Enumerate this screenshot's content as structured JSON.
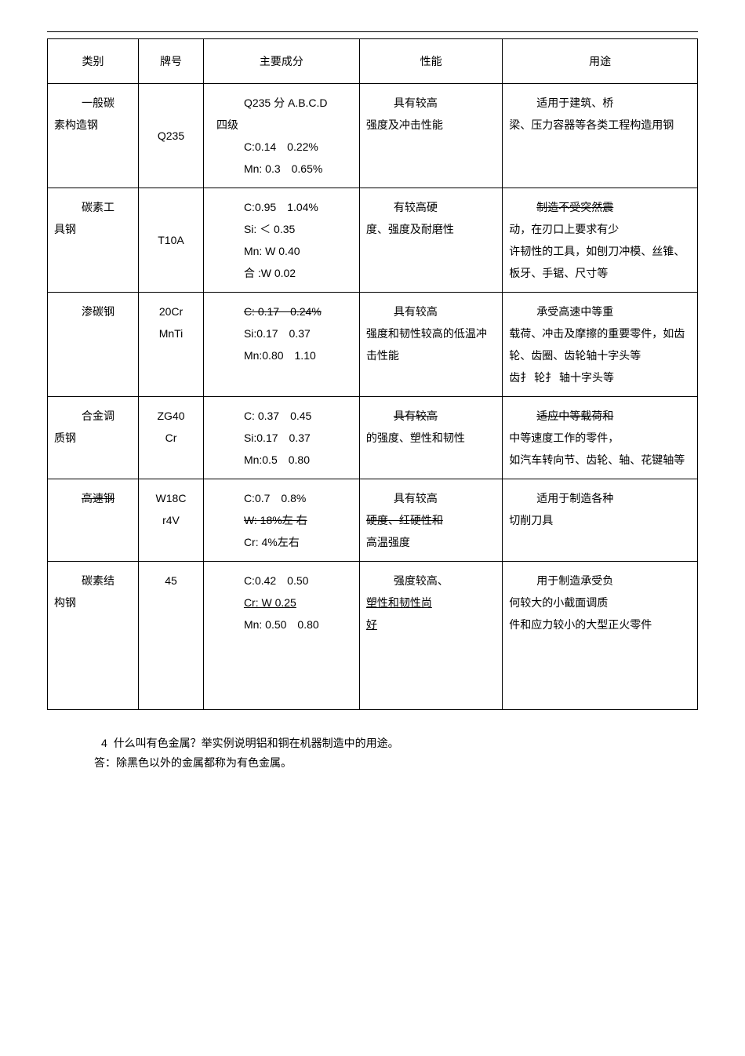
{
  "header": {
    "cat": "类别",
    "grade": "牌号",
    "comp": "主要成分",
    "prop": "性能",
    "use": "用途"
  },
  "rows": [
    {
      "cat_l1": "一般碳",
      "cat_l2": "素构造钢",
      "grade": "Q235",
      "comp_l1": "Q235 分 A.B.C.D",
      "comp_l2": "四级",
      "comp_l3": "C:0.14　0.22%",
      "comp_l4": "Mn: 0.3　0.65%",
      "prop_l1": "具有较高",
      "prop_l2": "强度及冲击性能",
      "use_l1": "适用于建筑、桥",
      "use_l2": "梁、压力容器等各类工程构造用钢"
    },
    {
      "cat_l1": "碳素工",
      "cat_l2": "具钢",
      "grade": "T10A",
      "comp_l1": "C:0.95　1.04%",
      "comp_l2": "Si: ＜ 0.35",
      "comp_l3": "Mn: W 0.40",
      "comp_l4": "合 :W 0.02",
      "prop_l1": "有较高硬",
      "prop_l2": "度、强度及耐磨性",
      "use_strike": "制造不受突然震",
      "use_l1": "动，在刃口上要求有少",
      "use_l2": "许韧性的工具，如刨刀冲模、丝锥、板牙、手锯、尺寸等"
    },
    {
      "cat_l1": "渗碳钢",
      "grade_l1": "20Cr",
      "grade_l2": "MnTi",
      "comp_strike": "C: 0.17　0.24%",
      "comp_l1": "Si:0.17　0.37",
      "comp_l2": "Mn:0.80　1.10",
      "prop_l1": "具有较高",
      "prop_l2": "强度和韧性较高的低温冲击性能",
      "use_l1": "承受高速中等重",
      "use_l2": "载荷、冲击及摩擦的重要零件，如齿轮、齿圈、齿轮轴十字头等",
      "use_l3": "齿扌 轮扌 轴十字头等"
    },
    {
      "cat_l1": "合金调",
      "cat_l2": "质钢",
      "grade_l1": "ZG40",
      "grade_l2": "Cr",
      "comp_l1": "C: 0.37　0.45",
      "comp_l2": "Si:0.17　0.37",
      "comp_l3": "Mn:0.5　0.80",
      "prop_strike": "具有较高",
      "prop_l1": "的强度、塑性和韧性",
      "use_strike": "适应中等载荷和",
      "use_l1": "中等速度工作的零件，",
      "use_l2": "如汽车转向节、齿轮、轴、花键轴等"
    },
    {
      "cat_l1": "高速钢",
      "grade_l1": "W18C",
      "grade_l2": "r4V",
      "comp_l1": "C:0.7　0.8%",
      "comp_strike": "W: 18%左 右",
      "comp_l2": "Cr: 4%左右",
      "prop_l1": "具有较高",
      "prop_strike": "硬度、红硬性和",
      "prop_l2": "高温强度",
      "use_l1": "适用于制造各种",
      "use_l2": "切削刀具"
    },
    {
      "cat_l1": "碳素结",
      "cat_l2": "构钢",
      "grade": "45",
      "comp_l1": "C:0.42　0.50",
      "comp_under": "Cr: W 0.25",
      "comp_l2": "Mn: 0.50　0.80",
      "prop_l1": "强度较高、",
      "prop_under": "塑性和韧性尚",
      "prop_under2": "好",
      "use_l1": "用于制造承受负",
      "use_l2": "何较大的小截面调质",
      "use_l3": "件和应力较小的大型正火零件"
    }
  ],
  "question": {
    "num": "4",
    "q": "什么叫有色金属？举实例说明铝和铜在机器制造中的用途。",
    "a": "答：除黑色以外的金属都称为有色金属。"
  }
}
